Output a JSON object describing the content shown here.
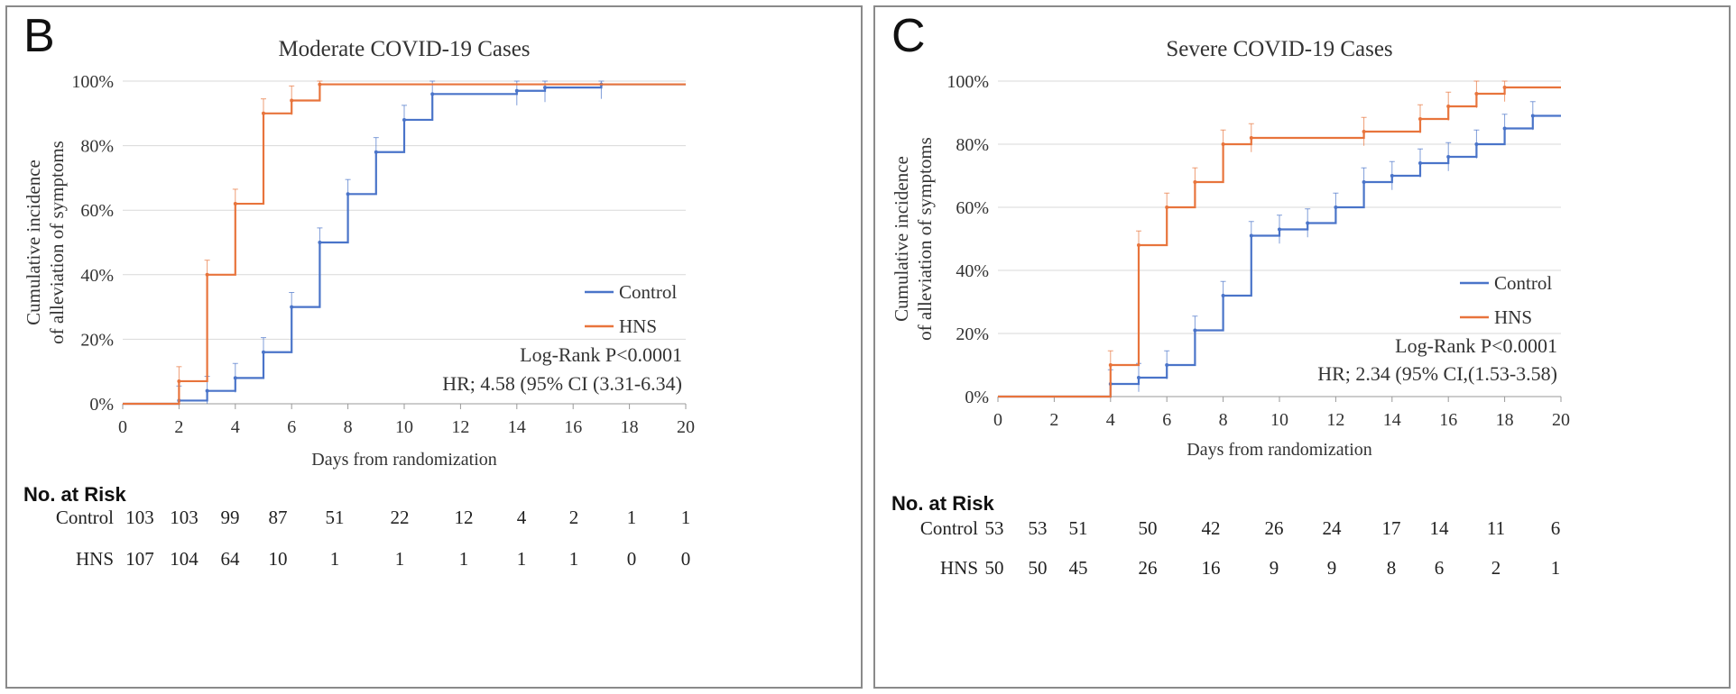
{
  "chart_data": [
    {
      "panel": "B",
      "type": "line",
      "step": true,
      "title": "Moderate COVID-19 Cases",
      "xlabel": "Days from randomization",
      "ylabel": [
        "Cumulative incidence",
        "of alleviation of symptoms"
      ],
      "xlim": [
        0,
        20
      ],
      "ylim": [
        0,
        100
      ],
      "xticks": [
        "0",
        "2",
        "4",
        "6",
        "8",
        "10",
        "12",
        "14",
        "16",
        "18",
        "20"
      ],
      "yticks": [
        "0%",
        "20%",
        "40%",
        "60%",
        "80%",
        "100%"
      ],
      "grid": "horizontal",
      "legend_position": "right",
      "series": [
        {
          "name": "Control",
          "color": "#4a74c9",
          "x": [
            0,
            2,
            3,
            4,
            5,
            6,
            7,
            8,
            9,
            10,
            11,
            14,
            15,
            17,
            20
          ],
          "y": [
            0,
            1,
            4,
            8,
            16,
            30,
            50,
            65,
            78,
            88,
            96,
            97,
            98,
            99,
            99
          ]
        },
        {
          "name": "HNS",
          "color": "#e8743c",
          "x": [
            0,
            2,
            3,
            4,
            5,
            6,
            7,
            20
          ],
          "y": [
            0,
            7,
            40,
            62,
            90,
            94,
            99,
            99
          ]
        }
      ],
      "annotations": [
        "Log-Rank P<0.0001",
        "HR; 4.58 (95% CI (3.31-6.34)"
      ],
      "risk_table": {
        "title": "No. at Risk",
        "days": [
          0,
          2,
          4,
          6,
          8,
          10,
          12,
          14,
          16,
          18,
          20
        ],
        "rows": [
          {
            "label": "Control",
            "values": [
              "103",
              "103",
              "99",
              "87",
              "51",
              "22",
              "12",
              "4",
              "2",
              "1",
              "1"
            ]
          },
          {
            "label": "HNS",
            "values": [
              "107",
              "104",
              "64",
              "10",
              "1",
              "1",
              "1",
              "1",
              "1",
              "0",
              "0"
            ]
          }
        ]
      }
    },
    {
      "panel": "C",
      "type": "line",
      "step": true,
      "title": "Severe COVID-19 Cases",
      "xlabel": "Days from randomization",
      "ylabel": [
        "Cumulative incidence",
        "of alleviation of symptoms"
      ],
      "xlim": [
        0,
        20
      ],
      "ylim": [
        0,
        100
      ],
      "xticks": [
        "0",
        "2",
        "4",
        "6",
        "8",
        "10",
        "12",
        "14",
        "16",
        "18",
        "20"
      ],
      "yticks": [
        "0%",
        "20%",
        "40%",
        "60%",
        "80%",
        "100%"
      ],
      "grid": "horizontal",
      "legend_position": "right",
      "series": [
        {
          "name": "Control",
          "color": "#4a74c9",
          "x": [
            0,
            4,
            5,
            6,
            7,
            8,
            9,
            10,
            11,
            12,
            13,
            14,
            15,
            16,
            17,
            18,
            19,
            20
          ],
          "y": [
            0,
            4,
            6,
            10,
            21,
            32,
            51,
            53,
            55,
            60,
            68,
            70,
            74,
            76,
            80,
            85,
            89,
            89
          ]
        },
        {
          "name": "HNS",
          "color": "#e8743c",
          "x": [
            0,
            4,
            5,
            6,
            7,
            8,
            9,
            13,
            15,
            16,
            17,
            18,
            20
          ],
          "y": [
            0,
            10,
            48,
            60,
            68,
            80,
            82,
            84,
            88,
            92,
            96,
            98,
            98
          ]
        }
      ],
      "annotations": [
        "Log-Rank P<0.0001",
        "HR; 2.34 (95% CI,(1.53-3.58)"
      ],
      "risk_table": {
        "title": "No. at Risk",
        "days": [
          0,
          2,
          4,
          6,
          8,
          10,
          12,
          14,
          16,
          18,
          20
        ],
        "rows": [
          {
            "label": "Control",
            "values": [
              "53",
              "53",
              "51",
              "50",
              "42",
              "26",
              "24",
              "17",
              "14",
              "11",
              "6"
            ]
          },
          {
            "label": "HNS",
            "values": [
              "50",
              "50",
              "45",
              "26",
              "16",
              "9",
              "9",
              "8",
              "6",
              "2",
              "1"
            ]
          }
        ]
      }
    }
  ]
}
